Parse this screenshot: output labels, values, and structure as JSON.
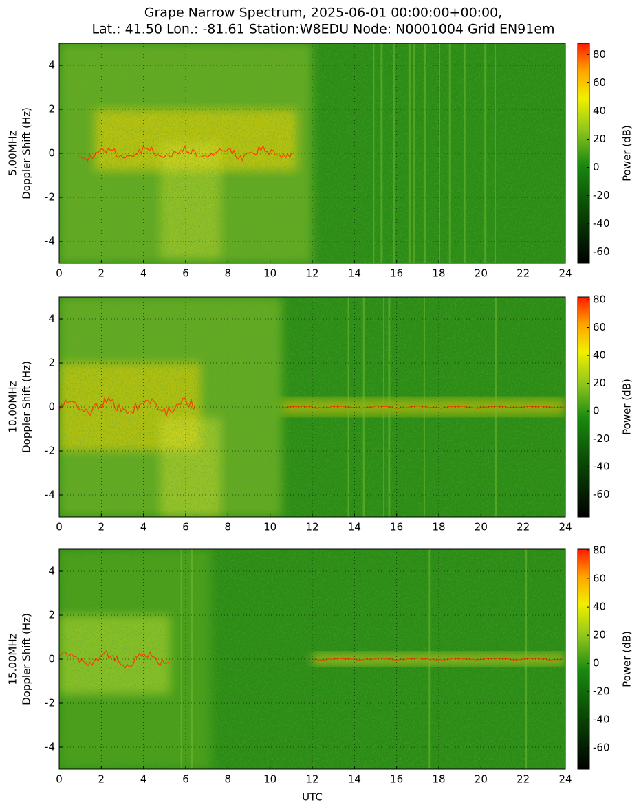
{
  "title": [
    "Grape Narrow Spectrum, 2025-06-01 00:00:00+00:00,",
    "Lat.: 41.50 Lon.: -81.61 Station:W8EDU Node: N0001004 Grid EN91em"
  ],
  "chart_data": [
    {
      "type": "spectrogram",
      "ylabel": [
        "5.00MHz",
        "Doppler Shift (Hz)"
      ],
      "xlim": [
        0,
        24
      ],
      "xticks": [
        0,
        2,
        4,
        6,
        8,
        10,
        12,
        14,
        16,
        18,
        20,
        22,
        24
      ],
      "ylim": [
        -5,
        5
      ],
      "yticks": [
        -4,
        -2,
        0,
        2,
        4
      ],
      "grid": true,
      "colorbar": {
        "label": "Power (dB)",
        "lim": [
          -68,
          88
        ],
        "ticks": [
          -60,
          -40,
          -20,
          0,
          20,
          40,
          60,
          80
        ]
      }
    },
    {
      "type": "spectrogram",
      "ylabel": [
        "10.00MHz",
        "Doppler Shift (Hz)"
      ],
      "xlim": [
        0,
        24
      ],
      "xticks": [
        0,
        2,
        4,
        6,
        8,
        10,
        12,
        14,
        16,
        18,
        20,
        22,
        24
      ],
      "ylim": [
        -5,
        5
      ],
      "yticks": [
        -4,
        -2,
        0,
        2,
        4
      ],
      "grid": true,
      "colorbar": {
        "label": "Power (dB)",
        "lim": [
          -76,
          82
        ],
        "ticks": [
          -60,
          -40,
          -20,
          0,
          20,
          40,
          60,
          80
        ]
      }
    },
    {
      "type": "spectrogram",
      "ylabel": [
        "15.00MHz",
        "Doppler Shift (Hz)"
      ],
      "xlabel": "UTC",
      "xlim": [
        0,
        24
      ],
      "xticks": [
        0,
        2,
        4,
        6,
        8,
        10,
        12,
        14,
        16,
        18,
        20,
        22,
        24
      ],
      "ylim": [
        -5,
        5
      ],
      "yticks": [
        -4,
        -2,
        0,
        2,
        4
      ],
      "grid": true,
      "colorbar": {
        "label": "Power (dB)",
        "lim": [
          -75,
          81
        ],
        "ticks": [
          -60,
          -40,
          -20,
          0,
          20,
          40,
          60,
          80
        ]
      }
    }
  ]
}
